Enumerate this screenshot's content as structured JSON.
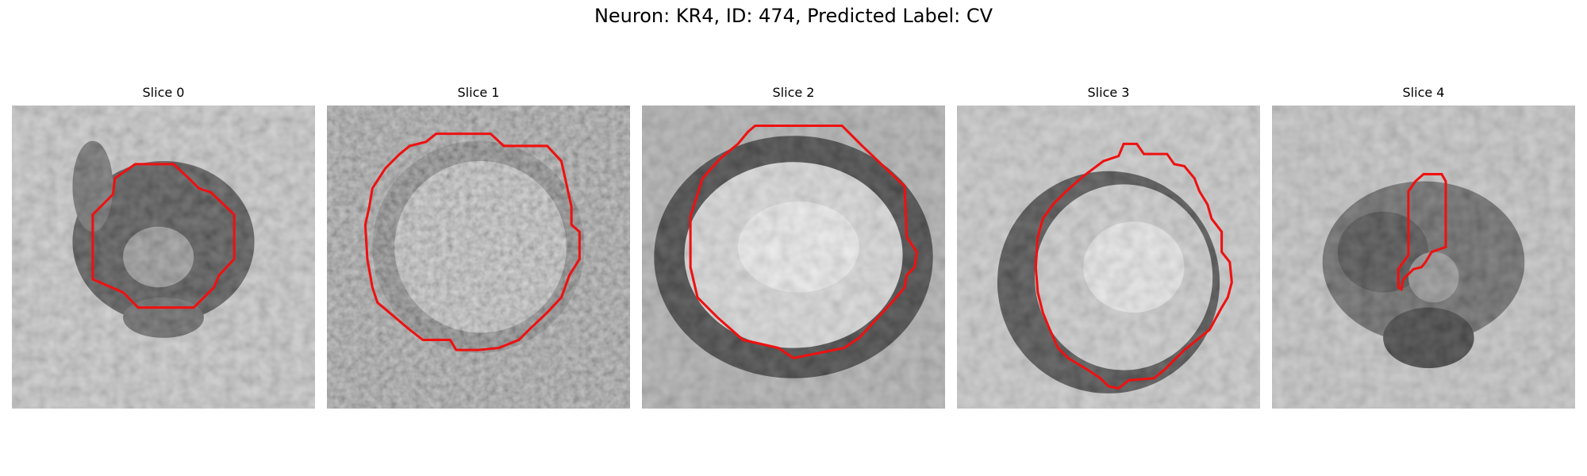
{
  "figure": {
    "title": "Neuron: KR4, ID: 474, Predicted Label: CV"
  },
  "contour_color": "#ee1111",
  "panels": [
    {
      "title": "Slice 0",
      "image": "grayscale-em-patch",
      "contour": "red-outline"
    },
    {
      "title": "Slice 1",
      "image": "grayscale-em-patch",
      "contour": "red-outline"
    },
    {
      "title": "Slice 2",
      "image": "grayscale-em-patch",
      "contour": "red-outline"
    },
    {
      "title": "Slice 3",
      "image": "grayscale-em-patch",
      "contour": "red-outline"
    },
    {
      "title": "Slice 4",
      "image": "grayscale-em-patch",
      "contour": "red-outline"
    }
  ]
}
